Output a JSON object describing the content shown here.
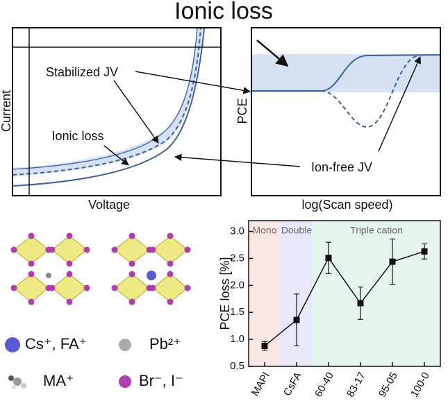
{
  "schematic": {
    "title": "Ionic loss",
    "current_axis": "Current",
    "voltage_axis": "Voltage",
    "stabilized_label": "Stabilized JV",
    "ionic_loss_label": "Ionic loss",
    "ion_free_label": "Ion-free JV",
    "pce_axis": "PCE",
    "scan_axis": "log(Scan speed)"
  },
  "legend": {
    "cs_fa": "Cs⁺, FA⁺",
    "pb": "Pb²⁺",
    "ma": "MA⁺",
    "halide": "Br⁻, I⁻"
  },
  "chart_data": {
    "type": "line",
    "ylabel": "PCE loss [%]",
    "categories": [
      "MAPI",
      "CsFA",
      "60-40",
      "83-17",
      "95-05",
      "100-0"
    ],
    "values": [
      0.88,
      1.36,
      2.51,
      1.67,
      2.44,
      2.63
    ],
    "errors": [
      0.08,
      0.48,
      0.29,
      0.3,
      0.42,
      0.14
    ],
    "color": "#111111",
    "ylim": [
      0.5,
      3.2
    ],
    "yticks": [
      {
        "value": 0.5,
        "label": "0.5"
      },
      {
        "value": 1.0,
        "label": "1.0"
      },
      {
        "value": 1.5,
        "label": "1.5"
      },
      {
        "value": 2.0,
        "label": "2.0"
      },
      {
        "value": 2.5,
        "label": "2.5"
      },
      {
        "value": 3.0,
        "label": "3.0"
      }
    ],
    "regions": [
      {
        "label": "Mono",
        "count": 1,
        "color": "#fbe6e6"
      },
      {
        "label": "Double",
        "count": 1,
        "color": "#e8e8fb"
      },
      {
        "label": "Triple cation",
        "count": 4,
        "color": "#e6f4ee"
      }
    ]
  }
}
